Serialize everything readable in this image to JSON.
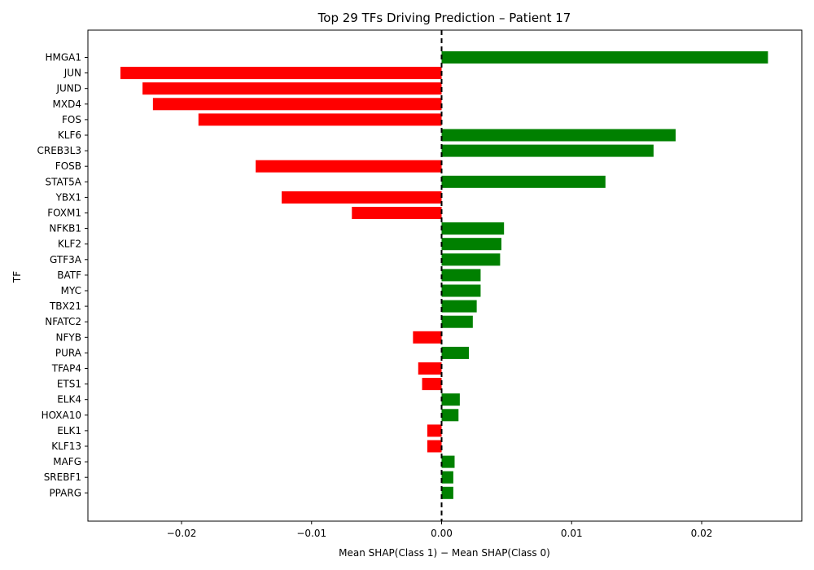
{
  "chart_data": {
    "type": "bar",
    "orientation": "horizontal",
    "title": "Top 29 TFs Driving Prediction – Patient 17",
    "xlabel": "Mean SHAP(Class 1) − Mean SHAP(Class 0)",
    "ylabel": "TF",
    "xlim": [
      -0.0272,
      0.0277
    ],
    "xticks": [
      -0.02,
      -0.01,
      0.0,
      0.01,
      0.02
    ],
    "xtick_labels": [
      "−0.02",
      "−0.01",
      "0.00",
      "0.01",
      "0.02"
    ],
    "zero_line": "dashed",
    "grid": false,
    "positive_color": "#008000",
    "negative_color": "#ff0000",
    "categories": [
      "HMGA1",
      "JUN",
      "JUND",
      "MXD4",
      "FOS",
      "KLF6",
      "CREB3L3",
      "FOSB",
      "STAT5A",
      "YBX1",
      "FOXM1",
      "NFKB1",
      "KLF2",
      "GTF3A",
      "BATF",
      "MYC",
      "TBX21",
      "NFATC2",
      "NFYB",
      "PURA",
      "TFAP4",
      "ETS1",
      "ELK4",
      "HOXA10",
      "ELK1",
      "KLF13",
      "MAFG",
      "SREBF1",
      "PPARG"
    ],
    "values": [
      0.0251,
      -0.0247,
      -0.023,
      -0.0222,
      -0.0187,
      0.018,
      0.0163,
      -0.0143,
      0.0126,
      -0.0123,
      -0.0069,
      0.0048,
      0.0046,
      0.0045,
      0.003,
      0.003,
      0.0027,
      0.0024,
      -0.0022,
      0.0021,
      -0.0018,
      -0.0015,
      0.0014,
      0.0013,
      -0.0011,
      -0.0011,
      0.001,
      0.0009,
      0.0009
    ]
  }
}
